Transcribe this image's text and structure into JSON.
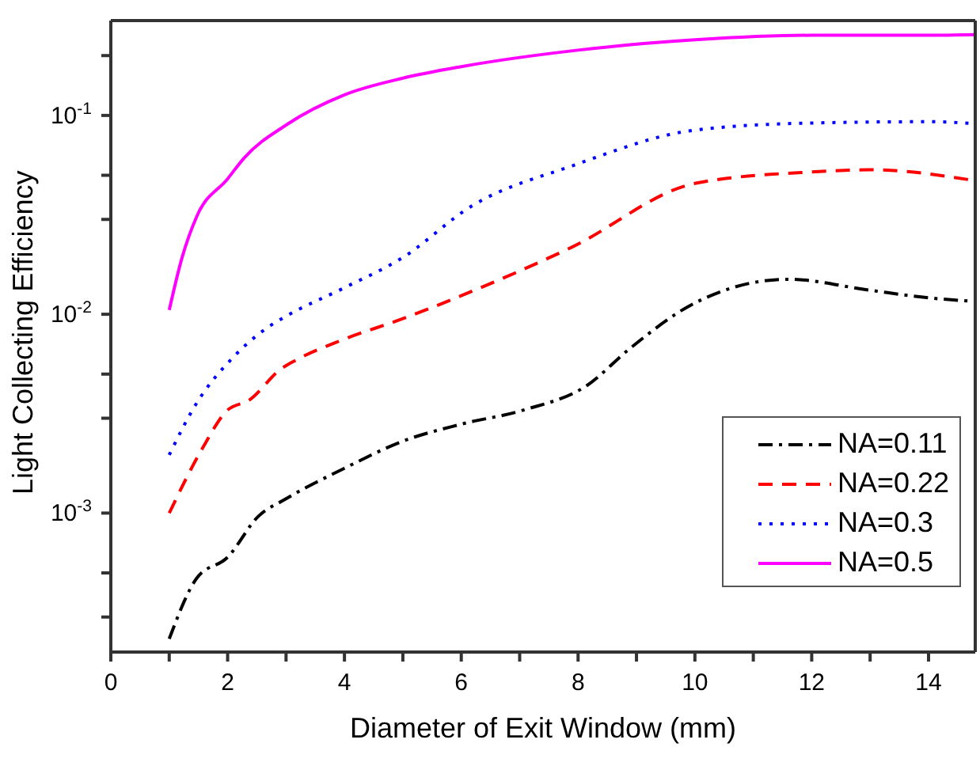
{
  "chart_data": {
    "type": "line",
    "xlabel": "Diameter of Exit Window (mm)",
    "ylabel": "Light Collecting Efficiency",
    "log": "y",
    "xlim": [
      0,
      14.8
    ],
    "ylim": [
      0.0002,
      0.3
    ],
    "xticks": [
      0,
      {
        "value": 1,
        "label": null
      },
      2,
      {
        "value": 3,
        "label": null
      },
      4,
      {
        "value": 5,
        "label": null
      },
      6,
      {
        "value": 7,
        "label": null
      },
      8,
      {
        "value": 9,
        "label": null
      },
      10,
      {
        "value": 11,
        "label": null
      },
      12,
      {
        "value": 13,
        "label": null
      },
      14
    ],
    "yticks": [
      {
        "value": 0.0003,
        "label": null
      },
      {
        "value": 0.0005,
        "label": null
      },
      {
        "value": 0.001,
        "label": "10$^{-3}$"
      },
      {
        "value": 0.003,
        "label": null
      },
      {
        "value": 0.005,
        "label": null
      },
      {
        "value": 0.01,
        "label": "10$^{-2}$"
      },
      {
        "value": 0.03,
        "label": null
      },
      {
        "value": 0.05,
        "label": null
      },
      {
        "value": 0.1,
        "label": "10$^{-1}$"
      },
      {
        "value": 0.2,
        "label": null
      }
    ],
    "legend": "bottom right",
    "series": [
      {
        "name": "NA=0.11",
        "color": "#000000",
        "line_style": "dashdot",
        "x": [
          1,
          1.47,
          2,
          2.52,
          3,
          4,
          5,
          6,
          7.07,
          8.16,
          8.88,
          10,
          11.6,
          13,
          14,
          14.8
        ],
        "values": [
          0.000233,
          0.00047,
          0.0006,
          0.00096,
          0.00118,
          0.00168,
          0.0023,
          0.0028,
          0.0033,
          0.0044,
          0.0067,
          0.0114,
          0.015,
          0.0132,
          0.0121,
          0.0116
        ]
      },
      {
        "name": "NA=0.22",
        "color": "#ff0000",
        "line_style": "dashed",
        "x": [
          1,
          1.55,
          2,
          2.37,
          2.91,
          3.18,
          4,
          5,
          6,
          7.9,
          10,
          12,
          13,
          14.8
        ],
        "values": [
          0.001,
          0.00207,
          0.0033,
          0.0037,
          0.0053,
          0.0059,
          0.0075,
          0.0095,
          0.0124,
          0.0218,
          0.0455,
          0.052,
          0.0533,
          0.047
        ]
      },
      {
        "name": "NA=0.3",
        "color": "#0000ff",
        "line_style": "dotted",
        "x": [
          1,
          1.45,
          2.1,
          2.69,
          2.98,
          4,
          5,
          6.17,
          7.9,
          10,
          12,
          14,
          14.8
        ],
        "values": [
          0.00196,
          0.0035,
          0.0061,
          0.0086,
          0.0097,
          0.0136,
          0.0193,
          0.0349,
          0.0558,
          0.0844,
          0.0916,
          0.093,
          0.091
        ]
      },
      {
        "name": "NA=0.5",
        "color": "#ff00ff",
        "line_style": "solid",
        "x": [
          1,
          1.22,
          1.47,
          2,
          2.28,
          3,
          4,
          5,
          6,
          8,
          10,
          12,
          14,
          14.8
        ],
        "values": [
          0.0105,
          0.0193,
          0.031,
          0.048,
          0.061,
          0.0895,
          0.127,
          0.154,
          0.176,
          0.213,
          0.24,
          0.253,
          0.253,
          0.255
        ]
      }
    ]
  }
}
